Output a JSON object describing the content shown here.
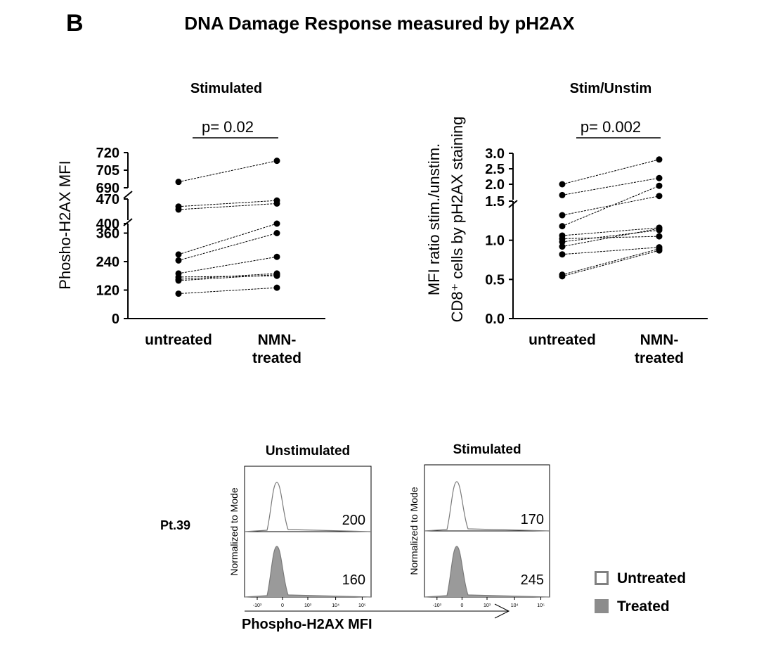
{
  "panel_letter": "B",
  "figure_title": "DNA Damage Response measured by pH2AX",
  "chart_data": [
    {
      "type": "scatter",
      "title": "Stimulated",
      "ylabel": "Phosho-H2AX MFI",
      "xlabel": "",
      "categories": [
        "untreated",
        "NMN-treated"
      ],
      "category_labels": [
        [
          "untreated"
        ],
        [
          "NMN-",
          "treated"
        ]
      ],
      "broken_axis": true,
      "axis_segments": [
        {
          "range": [
            0,
            400
          ],
          "ticks": [
            "0",
            "120",
            "240",
            "360",
            "400"
          ]
        },
        {
          "range": [
            400,
            470
          ],
          "ticks": [
            "400",
            "470"
          ]
        },
        {
          "range": [
            690,
            720
          ],
          "ticks": [
            "690",
            "705",
            "720"
          ]
        }
      ],
      "annotation": "p= 0.02",
      "series": [
        {
          "values": [
            695,
            713
          ]
        },
        {
          "values": [
            445,
            465
          ]
        },
        {
          "values": [
            435,
            455
          ]
        },
        {
          "values": [
            270,
            400
          ]
        },
        {
          "values": [
            245,
            360
          ]
        },
        {
          "values": [
            190,
            260
          ]
        },
        {
          "values": [
            175,
            180
          ]
        },
        {
          "values": [
            165,
            190
          ]
        },
        {
          "values": [
            160,
            185
          ]
        },
        {
          "values": [
            105,
            130
          ]
        }
      ]
    },
    {
      "type": "scatter",
      "title": "Stim/Unstim",
      "ylabel": "MFI ratio stim./unstim.",
      "ylabel2": "CD8⁺ cells by pH2AX staining",
      "xlabel": "",
      "categories": [
        "untreated",
        "NMN-treated"
      ],
      "category_labels": [
        [
          "untreated"
        ],
        [
          "NMN-",
          "treated"
        ]
      ],
      "broken_axis": true,
      "axis_segments": [
        {
          "range": [
            0,
            1.5
          ],
          "ticks": [
            "0.0",
            "0.5",
            "1.0",
            "1.5"
          ]
        },
        {
          "range": [
            1.5,
            3.0
          ],
          "ticks": [
            "1.5",
            "2.0",
            "2.5",
            "3.0"
          ]
        }
      ],
      "annotation": "p= 0.002",
      "series": [
        {
          "values": [
            2.0,
            2.8
          ]
        },
        {
          "values": [
            1.65,
            2.2
          ]
        },
        {
          "values": [
            1.32,
            1.62
          ]
        },
        {
          "values": [
            1.18,
            1.95
          ]
        },
        {
          "values": [
            1.06,
            1.16
          ]
        },
        {
          "values": [
            1.02,
            1.05
          ]
        },
        {
          "values": [
            0.98,
            1.13
          ]
        },
        {
          "values": [
            0.92,
            1.15
          ]
        },
        {
          "values": [
            0.82,
            0.91
          ]
        },
        {
          "values": [
            0.56,
            0.89
          ]
        },
        {
          "values": [
            0.54,
            0.87
          ]
        }
      ]
    },
    {
      "type": "area",
      "title": "Unstimulated",
      "ylabel": "Normalized to Mode",
      "xlabel": "Phospho-H2AX MFI",
      "x_ticks": [
        "-10³",
        "0",
        "10³",
        "10⁴",
        "10⁵"
      ],
      "series": [
        {
          "name": "Untreated",
          "mfi": 200
        },
        {
          "name": "Treated",
          "mfi": 160
        }
      ]
    },
    {
      "type": "area",
      "title": "Stimulated",
      "ylabel": "Normalized to Mode",
      "xlabel": "",
      "x_ticks": [
        "-10³",
        "0",
        "10³",
        "10⁴",
        "10⁵"
      ],
      "series": [
        {
          "name": "Untreated",
          "mfi": 170
        },
        {
          "name": "Treated",
          "mfi": 245
        }
      ]
    }
  ],
  "histogram_row_label": "Pt.39",
  "legend": {
    "items": [
      {
        "label": "Untreated",
        "fill": "#ffffff",
        "stroke": "#808080"
      },
      {
        "label": "Treated",
        "fill": "#8c8c8c",
        "stroke": "#8c8c8c"
      }
    ]
  },
  "colors": {
    "hist_fill": "#9a9a9a",
    "hist_line": "#7a7a7a"
  }
}
